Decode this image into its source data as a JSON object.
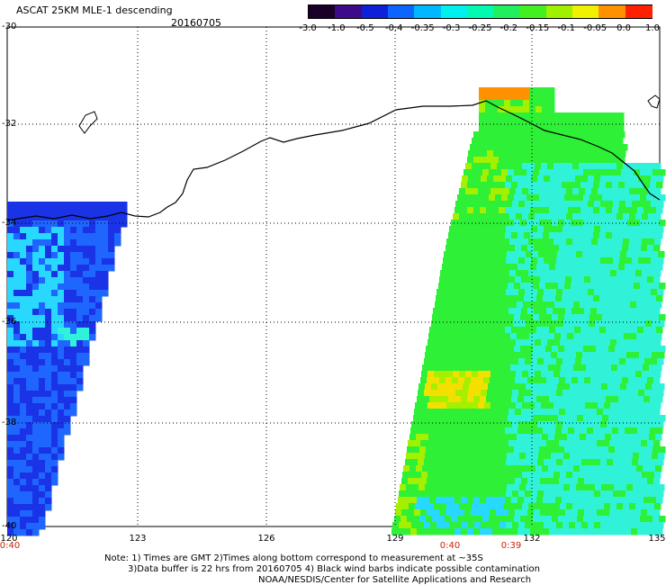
{
  "header": {
    "title": "ASCAT 25KM MLE-1 descending",
    "date": "20160705"
  },
  "colorbar": {
    "labels": [
      "-3.0",
      "-1.0",
      "-0.5",
      "-0.4",
      "-0.35",
      "-0.3",
      "-0.25",
      "-0.2",
      "-0.15",
      "-0.1",
      "-0.05",
      "0.0",
      "1.0"
    ],
    "colors": [
      "#1a0026",
      "#3d0a8c",
      "#1020d8",
      "#0a66ff",
      "#00b8ff",
      "#00f0ee",
      "#00fab0",
      "#20f060",
      "#40f020",
      "#a0f000",
      "#f0f000",
      "#ff9000",
      "#ff2000"
    ]
  },
  "map": {
    "lat_labels": [
      "-30",
      "-32",
      "-34",
      "-36",
      "-38",
      "-40"
    ],
    "lon_labels": [
      "120",
      "123",
      "126",
      "129",
      "132",
      "135"
    ],
    "time_labels": [
      "0:40",
      "0:40",
      "0:39"
    ],
    "swath_colors": {
      "deep_blue": "#1a33e6",
      "blue": "#1f66ff",
      "cyan": "#28d8ff",
      "aqua": "#30f2d8",
      "green": "#2ef036",
      "yellow_green": "#a4f000",
      "yellow": "#f4e000",
      "orange": "#ff9000",
      "coast": "#000000"
    }
  },
  "notes": {
    "line1": "Note: 1) Times are GMT 2)Times along bottom correspond to measurement at ~35S",
    "line2": "3)Data buffer is 22 hrs from 20160705 4) Black wind barbs indicate possible contamination",
    "line3": "NOAA/NESDIS/Center for Satellite Applications and Research"
  }
}
